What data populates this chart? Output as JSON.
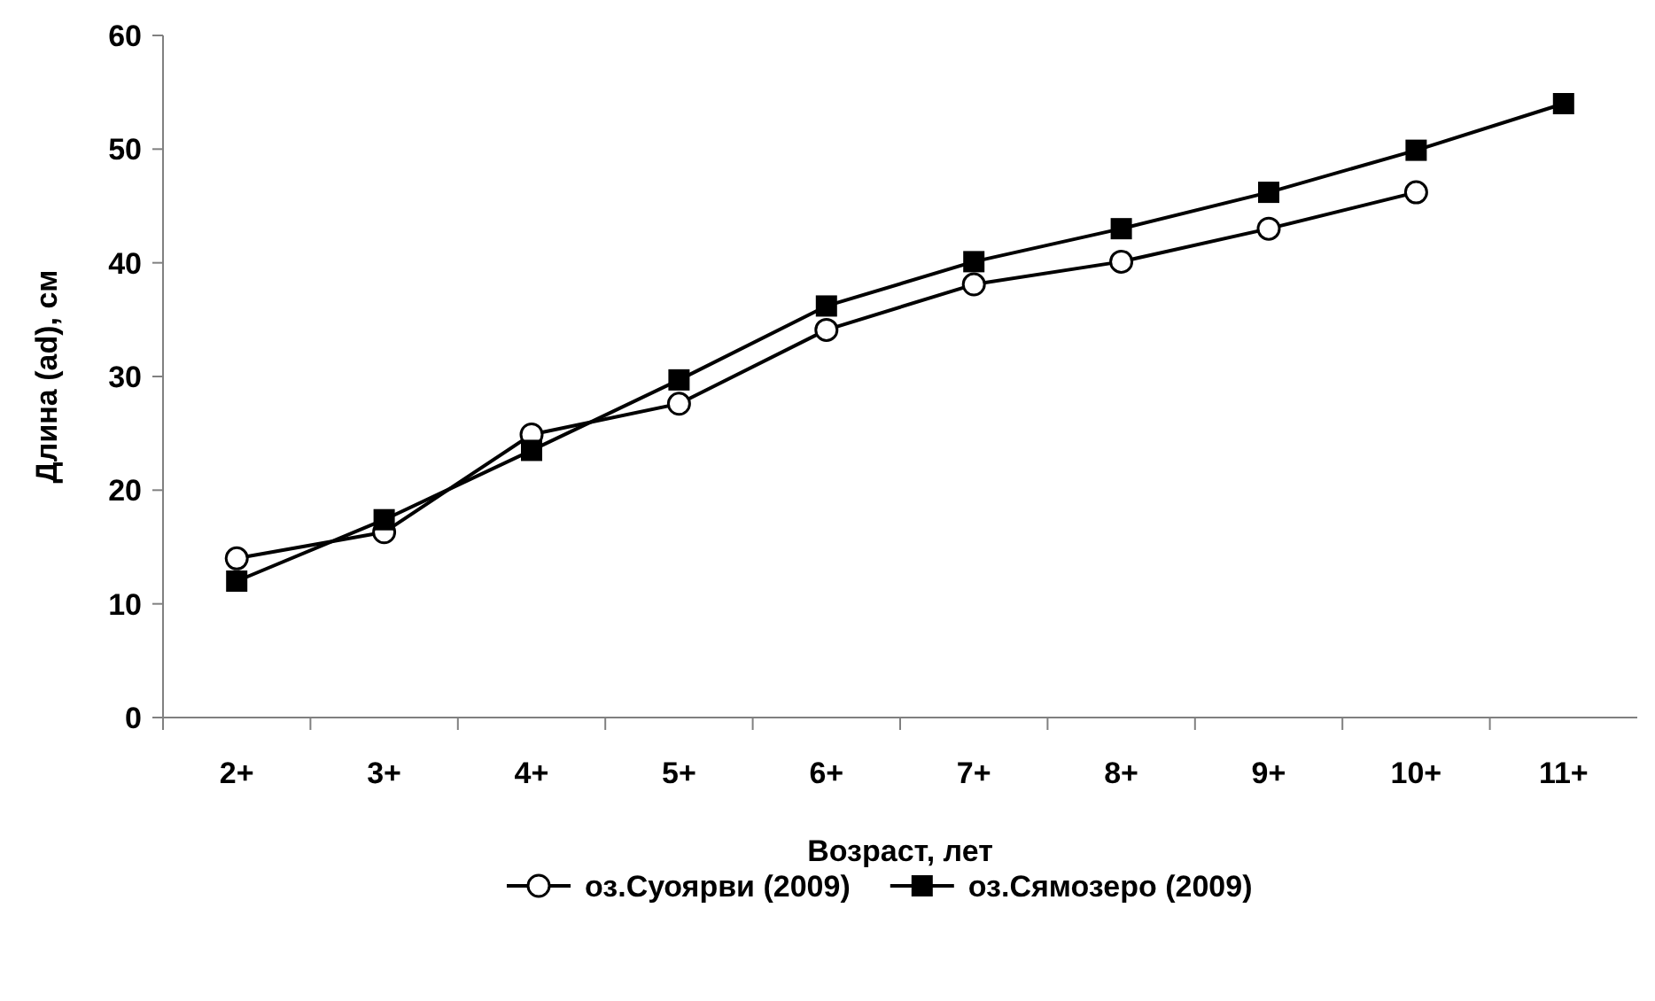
{
  "chart_data": {
    "type": "line",
    "xlabel": "Возраст, лет",
    "ylabel": "Длина (ad), см",
    "categories": [
      "2+",
      "3+",
      "4+",
      "5+",
      "6+",
      "7+",
      "8+",
      "9+",
      "10+",
      "11+"
    ],
    "series": [
      {
        "name": "оз.Суоярви (2009)",
        "color": "#000000",
        "marker": "circle",
        "values": [
          14,
          16.3,
          24.9,
          27.6,
          34.1,
          38.1,
          40.1,
          43,
          46.2,
          null
        ]
      },
      {
        "name": "оз.Сямозеро (2009)",
        "color": "#000000",
        "marker": "square",
        "values": [
          12,
          17.4,
          23.5,
          29.7,
          36.2,
          40.1,
          43,
          46.2,
          49.9,
          54
        ]
      }
    ],
    "ylim": [
      0,
      60
    ],
    "yticks": [
      0,
      10,
      20,
      30,
      40,
      50,
      60
    ],
    "grid": false,
    "legend": "bottom",
    "line_style": "solid"
  }
}
